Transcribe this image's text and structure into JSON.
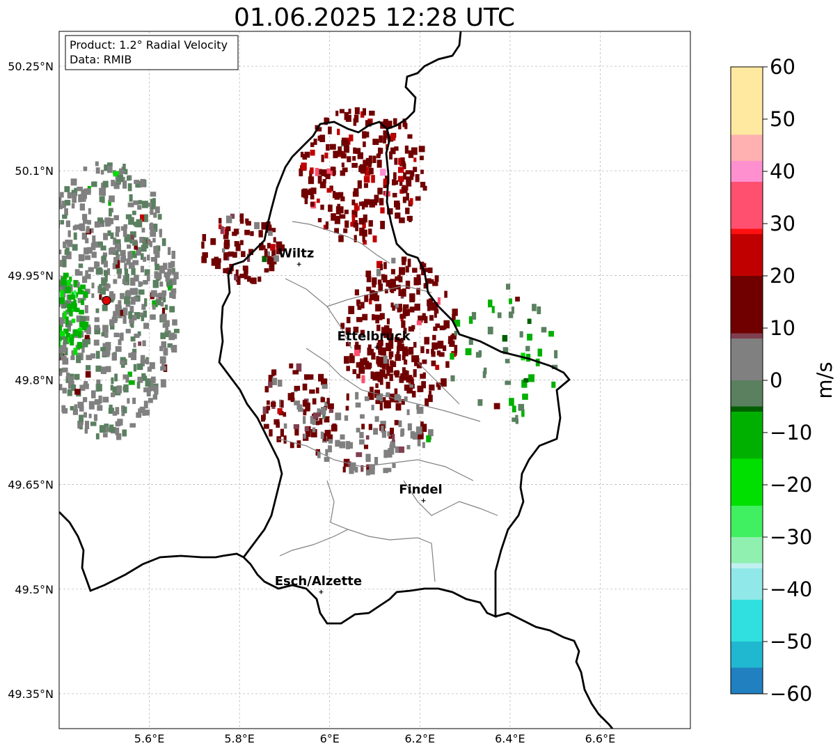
{
  "title": "01.06.2025 12:28 UTC",
  "info_box": {
    "line1": "Product: 1.2° Radial Velocity",
    "line2": "Data: RMIB"
  },
  "map_extent": {
    "lon_min": 5.4,
    "lon_max": 6.8,
    "lat_min": 49.3,
    "lat_max": 50.3
  },
  "lat_ticks": [
    {
      "value": 50.25,
      "label": "50.25°N"
    },
    {
      "value": 50.1,
      "label": "50.1°N"
    },
    {
      "value": 49.95,
      "label": "49.95°N"
    },
    {
      "value": 49.8,
      "label": "49.8°N"
    },
    {
      "value": 49.65,
      "label": "49.65°N"
    },
    {
      "value": 49.5,
      "label": "49.5°N"
    },
    {
      "value": 49.35,
      "label": "49.35°N"
    }
  ],
  "lon_ticks": [
    {
      "value": 5.6,
      "label": "5.6°E"
    },
    {
      "value": 5.8,
      "label": "5.8°E"
    },
    {
      "value": 6.0,
      "label": "6°E"
    },
    {
      "value": 6.2,
      "label": "6.2°E"
    },
    {
      "value": 6.4,
      "label": "6.4°E"
    },
    {
      "value": 6.6,
      "label": "6.6°E"
    }
  ],
  "cities": [
    {
      "name": "Wiltz",
      "lon": 5.932,
      "lat": 49.966
    },
    {
      "name": "Ettelbruck",
      "lon": 6.104,
      "lat": 49.847
    },
    {
      "name": "Findel",
      "lon": 6.208,
      "lat": 49.627
    },
    {
      "name": "Esch/Alzette",
      "lon": 5.981,
      "lat": 49.496
    }
  ],
  "radar_site": {
    "lon": 5.505,
    "lat": 49.914,
    "color": "#e00000"
  },
  "colorbar": {
    "label": "m/s",
    "min": -60,
    "max": 60,
    "tick_values": [
      60,
      50,
      40,
      30,
      20,
      10,
      0,
      -10,
      -20,
      -30,
      -40,
      -50,
      -60
    ],
    "tick_labels": [
      "60",
      "50",
      "40",
      "30",
      "20",
      "10",
      "0",
      "−10",
      "−20",
      "−30",
      "−40",
      "−50",
      "−60"
    ],
    "stops": [
      {
        "v": -60,
        "color": "#2080c0"
      },
      {
        "v": -55,
        "color": "#20b8d0"
      },
      {
        "v": -50,
        "color": "#30e0e0"
      },
      {
        "v": -42,
        "color": "#90e8e8"
      },
      {
        "v": -36,
        "color": "#c0f0f0"
      },
      {
        "v": -35,
        "color": "#90f0b0"
      },
      {
        "v": -30,
        "color": "#40f060"
      },
      {
        "v": -24,
        "color": "#00e000"
      },
      {
        "v": -15,
        "color": "#00b000"
      },
      {
        "v": -6,
        "color": "#006000"
      },
      {
        "v": -5,
        "color": "#5a8060"
      },
      {
        "v": 0,
        "color": "#808080"
      },
      {
        "v": 8,
        "color": "#804050"
      },
      {
        "v": 9,
        "color": "#700000"
      },
      {
        "v": 20,
        "color": "#c00000"
      },
      {
        "v": 28,
        "color": "#ff1010"
      },
      {
        "v": 29,
        "color": "#ff5070"
      },
      {
        "v": 38,
        "color": "#ff90d0"
      },
      {
        "v": 42,
        "color": "#ffb0b0"
      },
      {
        "v": 47,
        "color": "#ffe8a0"
      },
      {
        "v": 60,
        "color": "#ffa050"
      }
    ]
  },
  "echo_regions": [
    {
      "name": "west-near-radar-noise",
      "lon": 5.5,
      "lat": 49.92,
      "rlon": 0.16,
      "rlat": 0.2,
      "v": 2,
      "density": 0.9
    },
    {
      "name": "west-green",
      "lon": 5.42,
      "lat": 49.9,
      "rlon": 0.04,
      "rlat": 0.06,
      "v": -12,
      "density": 0.9
    },
    {
      "name": "north-cell",
      "lon": 6.07,
      "lat": 50.1,
      "rlon": 0.14,
      "rlat": 0.1,
      "v": 17,
      "density": 0.75
    },
    {
      "name": "central-cell",
      "lon": 6.15,
      "lat": 49.87,
      "rlon": 0.13,
      "rlat": 0.11,
      "v": 14,
      "density": 0.85
    },
    {
      "name": "west-red-band",
      "lon": 5.8,
      "lat": 49.99,
      "rlon": 0.09,
      "rlat": 0.05,
      "v": 12,
      "density": 0.8
    },
    {
      "name": "south-west-cell",
      "lon": 5.92,
      "lat": 49.77,
      "rlon": 0.08,
      "rlat": 0.06,
      "v": 11,
      "density": 0.7
    },
    {
      "name": "southern-tail",
      "lon": 6.08,
      "lat": 49.73,
      "rlon": 0.14,
      "rlat": 0.06,
      "v": 6,
      "density": 0.6
    },
    {
      "name": "east-scatter",
      "lon": 6.38,
      "lat": 49.84,
      "rlon": 0.13,
      "rlat": 0.1,
      "v": -5,
      "density": 0.18
    }
  ]
}
